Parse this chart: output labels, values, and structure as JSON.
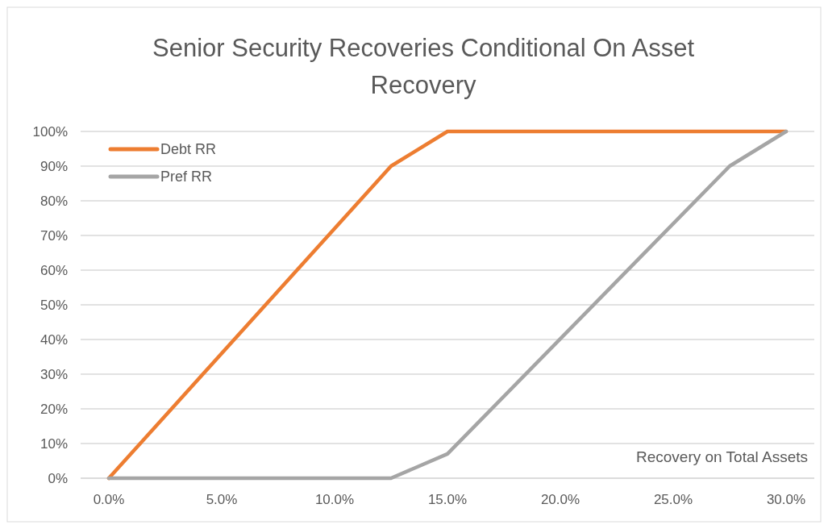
{
  "chart_data": {
    "type": "line",
    "title": "Senior Security Recoveries Conditional On Asset Recovery",
    "xlabel": "Recovery on Total Assets",
    "series": [
      {
        "name": "Debt RR",
        "color": "#ed7d31",
        "x": [
          0,
          12.5,
          15,
          30
        ],
        "values": [
          0,
          90,
          100,
          100
        ]
      },
      {
        "name": "Pref RR",
        "color": "#a5a5a5",
        "x": [
          0,
          12.5,
          15,
          27.5,
          30
        ],
        "values": [
          0,
          0,
          7,
          90,
          100
        ]
      }
    ],
    "xlim": [
      -1.25,
      31.25
    ],
    "xticks": [
      {
        "value": 0,
        "label": "0.0%"
      },
      {
        "value": 5,
        "label": "5.0%"
      },
      {
        "value": 10,
        "label": "10.0%"
      },
      {
        "value": 15,
        "label": "15.0%"
      },
      {
        "value": 20,
        "label": "20.0%"
      },
      {
        "value": 25,
        "label": "25.0%"
      },
      {
        "value": 30,
        "label": "30.0%"
      }
    ],
    "ylim": [
      0,
      100
    ],
    "yticks": [
      {
        "value": 0,
        "label": "0%"
      },
      {
        "value": 10,
        "label": "10%"
      },
      {
        "value": 20,
        "label": "20%"
      },
      {
        "value": 30,
        "label": "30%"
      },
      {
        "value": 40,
        "label": "40%"
      },
      {
        "value": 50,
        "label": "50%"
      },
      {
        "value": 60,
        "label": "60%"
      },
      {
        "value": 70,
        "label": "70%"
      },
      {
        "value": 80,
        "label": "80%"
      },
      {
        "value": 90,
        "label": "90%"
      },
      {
        "value": 100,
        "label": "100%"
      }
    ],
    "grid": "y",
    "legend": "top left",
    "marker": "none",
    "line_style": "solid"
  }
}
